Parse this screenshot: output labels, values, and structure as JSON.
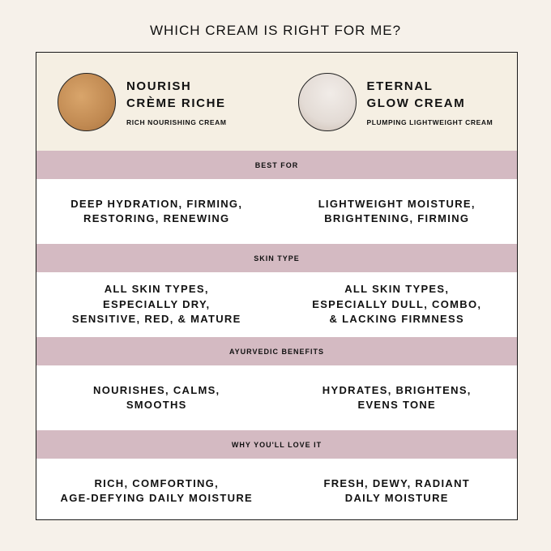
{
  "title": "WHICH CREAM IS RIGHT FOR ME?",
  "products": [
    {
      "name_line1": "NOURISH",
      "name_line2": "CRÈME RICHE",
      "subtitle": "RICH NOURISHING CREAM",
      "swatch_color": "#c8925a"
    },
    {
      "name_line1": "ETERNAL",
      "name_line2": "GLOW CREAM",
      "subtitle": "PLUMPING LIGHTWEIGHT CREAM",
      "swatch_color": "#e6ded8"
    }
  ],
  "sections": [
    {
      "label": "BEST FOR",
      "values": [
        "DEEP HYDRATION, FIRMING,\nRESTORING, RENEWING",
        "LIGHTWEIGHT MOISTURE,\nBRIGHTENING, FIRMING"
      ]
    },
    {
      "label": "SKIN TYPE",
      "values": [
        "ALL SKIN TYPES,\nESPECIALLY DRY,\nSENSITIVE, RED, & MATURE",
        "ALL SKIN TYPES,\nESPECIALLY DULL, COMBO,\n& LACKING FIRMNESS"
      ]
    },
    {
      "label": "AYURVEDIC BENEFITS",
      "values": [
        "NOURISHES, CALMS,\nSMOOTHS",
        "HYDRATES, BRIGHTENS,\nEVENS TONE"
      ]
    },
    {
      "label": "WHY YOU'LL LOVE IT",
      "values": [
        "RICH, COMFORTING,\nAGE-DEFYING DAILY MOISTURE",
        "FRESH, DEWY, RADIANT\nDAILY MOISTURE"
      ]
    }
  ],
  "colors": {
    "background": "#f6f1ea",
    "header": "#f5efe3",
    "band": "#d4bac2"
  }
}
